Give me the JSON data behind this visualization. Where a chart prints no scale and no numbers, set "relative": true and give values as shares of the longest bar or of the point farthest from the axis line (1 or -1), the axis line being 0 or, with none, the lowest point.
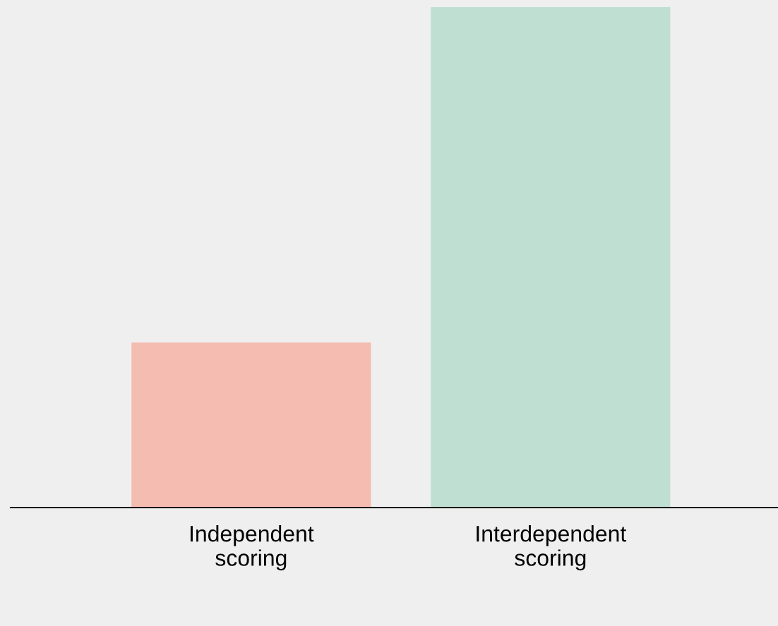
{
  "chart_data": {
    "type": "bar",
    "relative": true,
    "categories": [
      "Independent\nscoring",
      "Interdependent\nscoring"
    ],
    "values": [
      0.33,
      1
    ],
    "colors": [
      "#f5bcb1",
      "#c0dfd3"
    ],
    "grid": false,
    "legend": false
  }
}
